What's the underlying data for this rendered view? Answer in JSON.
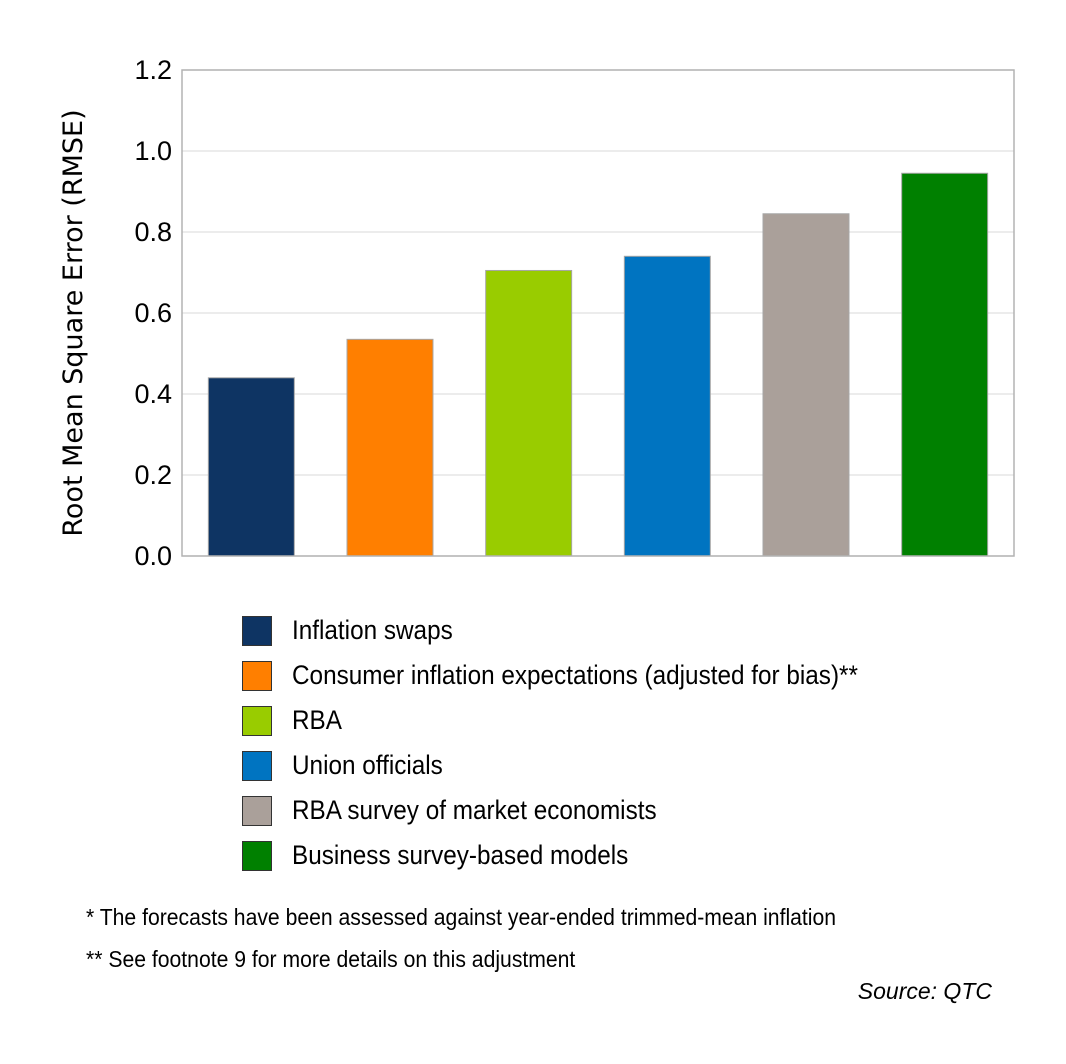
{
  "chart_data": {
    "type": "bar",
    "ylabel": "Root Mean Square Error (RMSE)",
    "ylim": [
      0,
      1.2
    ],
    "yticks": [
      "0.0",
      "0.2",
      "0.4",
      "0.6",
      "0.8",
      "1.0",
      "1.2"
    ],
    "grid": true,
    "legend_position": "bottom",
    "categories": [
      "Inflation swaps",
      "Consumer inflation expectations (adjusted for bias)**",
      "RBA",
      "Union officials",
      "RBA survey of market economists",
      "Business survey-based models"
    ],
    "values": [
      0.44,
      0.535,
      0.705,
      0.74,
      0.845,
      0.945
    ],
    "colors": [
      "#0e3463",
      "#ff7f00",
      "#99cc00",
      "#0074c1",
      "#aaa09a",
      "#008000"
    ]
  },
  "notes": {
    "note1": "*   The forecasts have been assessed against year-ended trimmed-mean inflation",
    "note2": "** See footnote 9 for more details on this adjustment"
  },
  "source": "Source: QTC"
}
